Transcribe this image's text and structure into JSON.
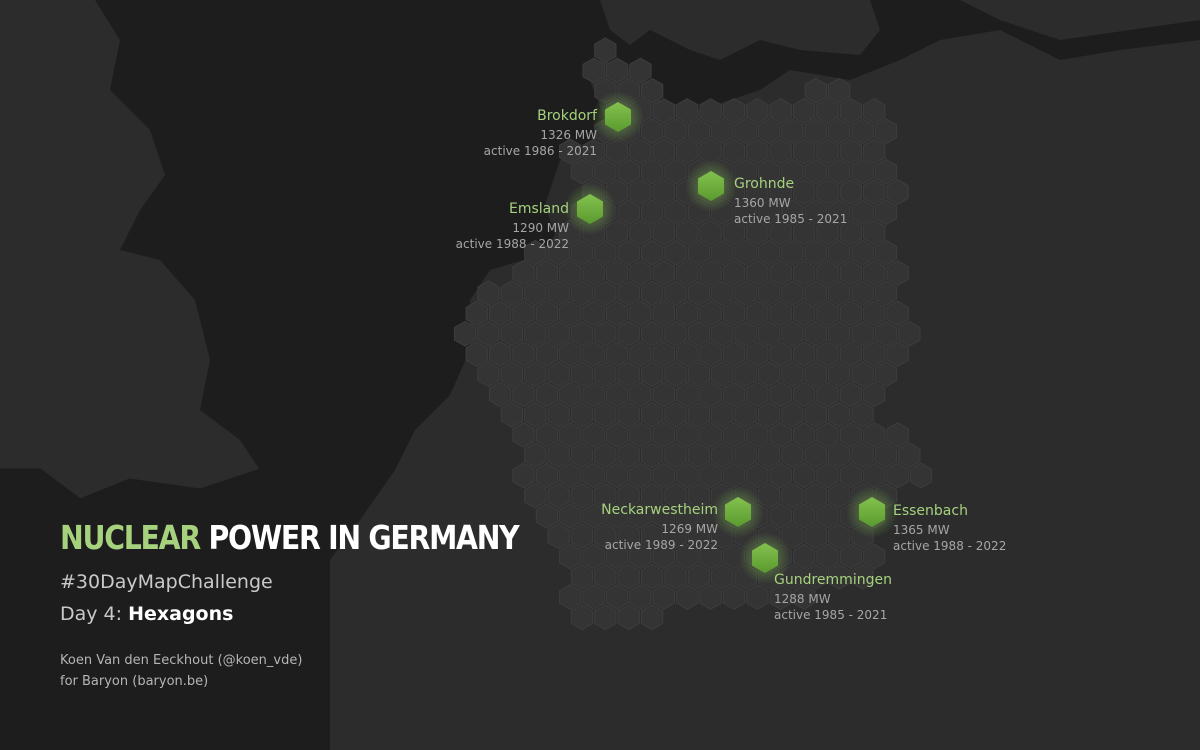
{
  "title": {
    "accent": "NUCLEAR",
    "rest": "POWER IN GERMANY"
  },
  "subtitle": "#30DayMapChallenge",
  "day": {
    "prefix": "Day 4:",
    "theme": "Hexagons"
  },
  "credits": {
    "author": "Koen Van den Eeckhout (@koen_vde)",
    "org": "for Baryon (baryon.be)"
  },
  "plants": [
    {
      "name": "Brokdorf",
      "capacity": "1326 MW",
      "active": "active 1986 - 2021"
    },
    {
      "name": "Emsland",
      "capacity": "1290 MW",
      "active": "active 1988 - 2022"
    },
    {
      "name": "Grohnde",
      "capacity": "1360 MW",
      "active": "active 1985 - 2021"
    },
    {
      "name": "Neckarwestheim",
      "capacity": "1269 MW",
      "active": "active 1989 - 2022"
    },
    {
      "name": "Essenbach",
      "capacity": "1365 MW",
      "active": "active 1988 - 2022"
    },
    {
      "name": "Gundremmingen",
      "capacity": "1288 MW",
      "active": "active 1985 - 2021"
    }
  ],
  "colors": {
    "background": "#1d1d1d",
    "land": "#2c2c2c",
    "hex_fill": "#343434",
    "hex_stroke": "#3d3d3d",
    "plant_hex": "#6aa83a",
    "accent_text": "#a6d27e"
  }
}
